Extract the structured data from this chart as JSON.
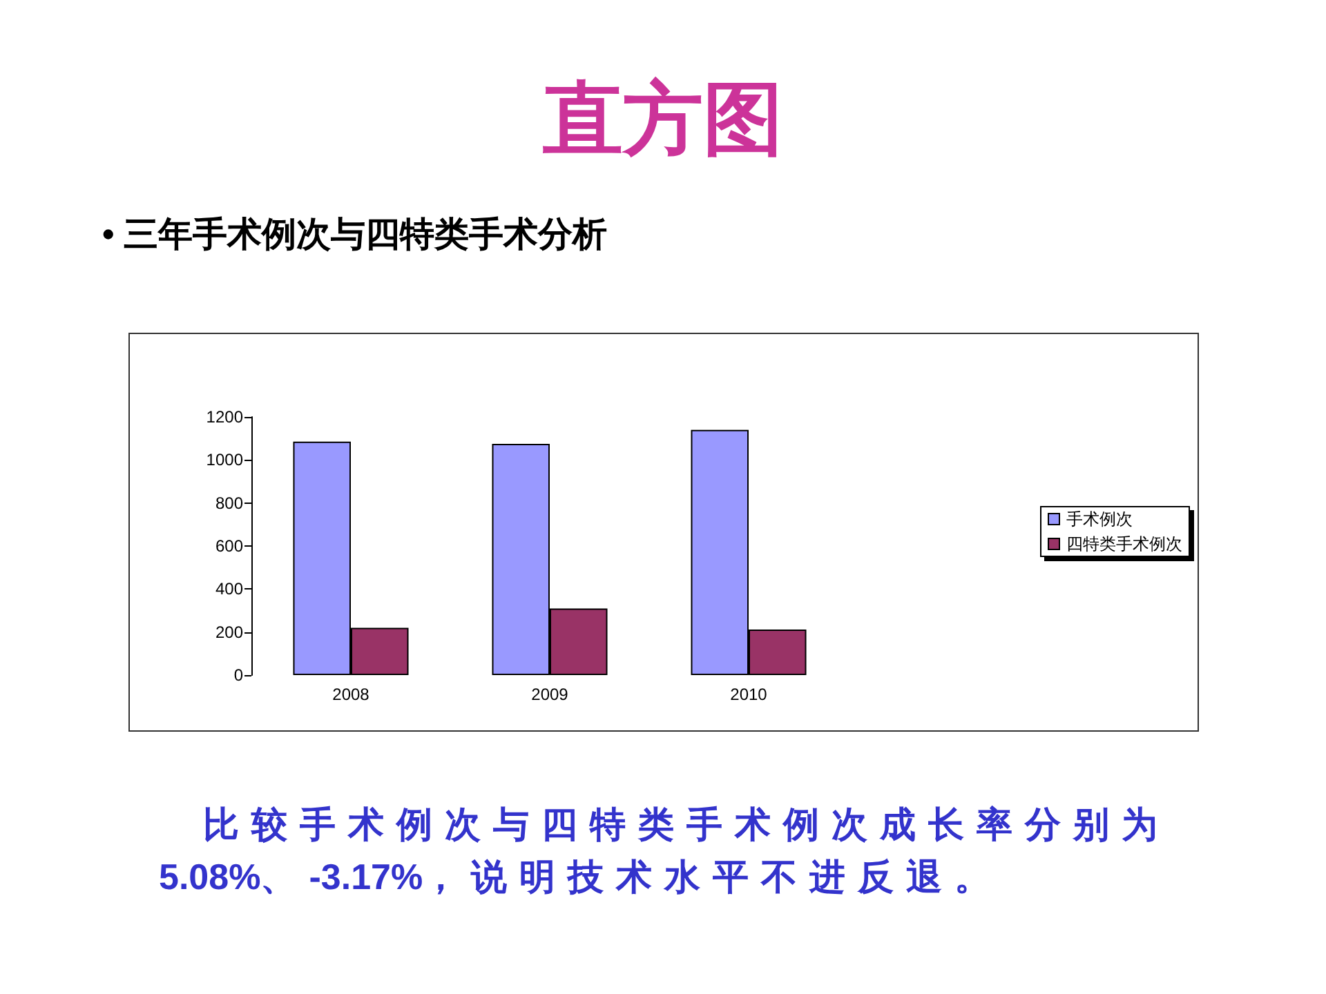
{
  "chart_data": {
    "type": "bar",
    "title": "直方图",
    "subtitle": "• 三年手术例次与四特类手术分析",
    "categories": [
      "2008",
      "2009",
      "2010"
    ],
    "series": [
      {
        "name": "手术例次",
        "color": "#9999ff",
        "values": [
          1085,
          1075,
          1140
        ]
      },
      {
        "name": "四特类手术例次",
        "color": "#993366",
        "values": [
          220,
          310,
          212
        ]
      }
    ],
    "ylim": [
      0,
      1200
    ],
    "yticks": [
      0,
      200,
      400,
      600,
      800,
      1000,
      1200
    ],
    "grid": false,
    "legend": "right",
    "annotations": [
      "比较手术例次与四特类手术例次成长率分别为5.08%、-3.17%，说明技术水平不进反退。"
    ]
  }
}
